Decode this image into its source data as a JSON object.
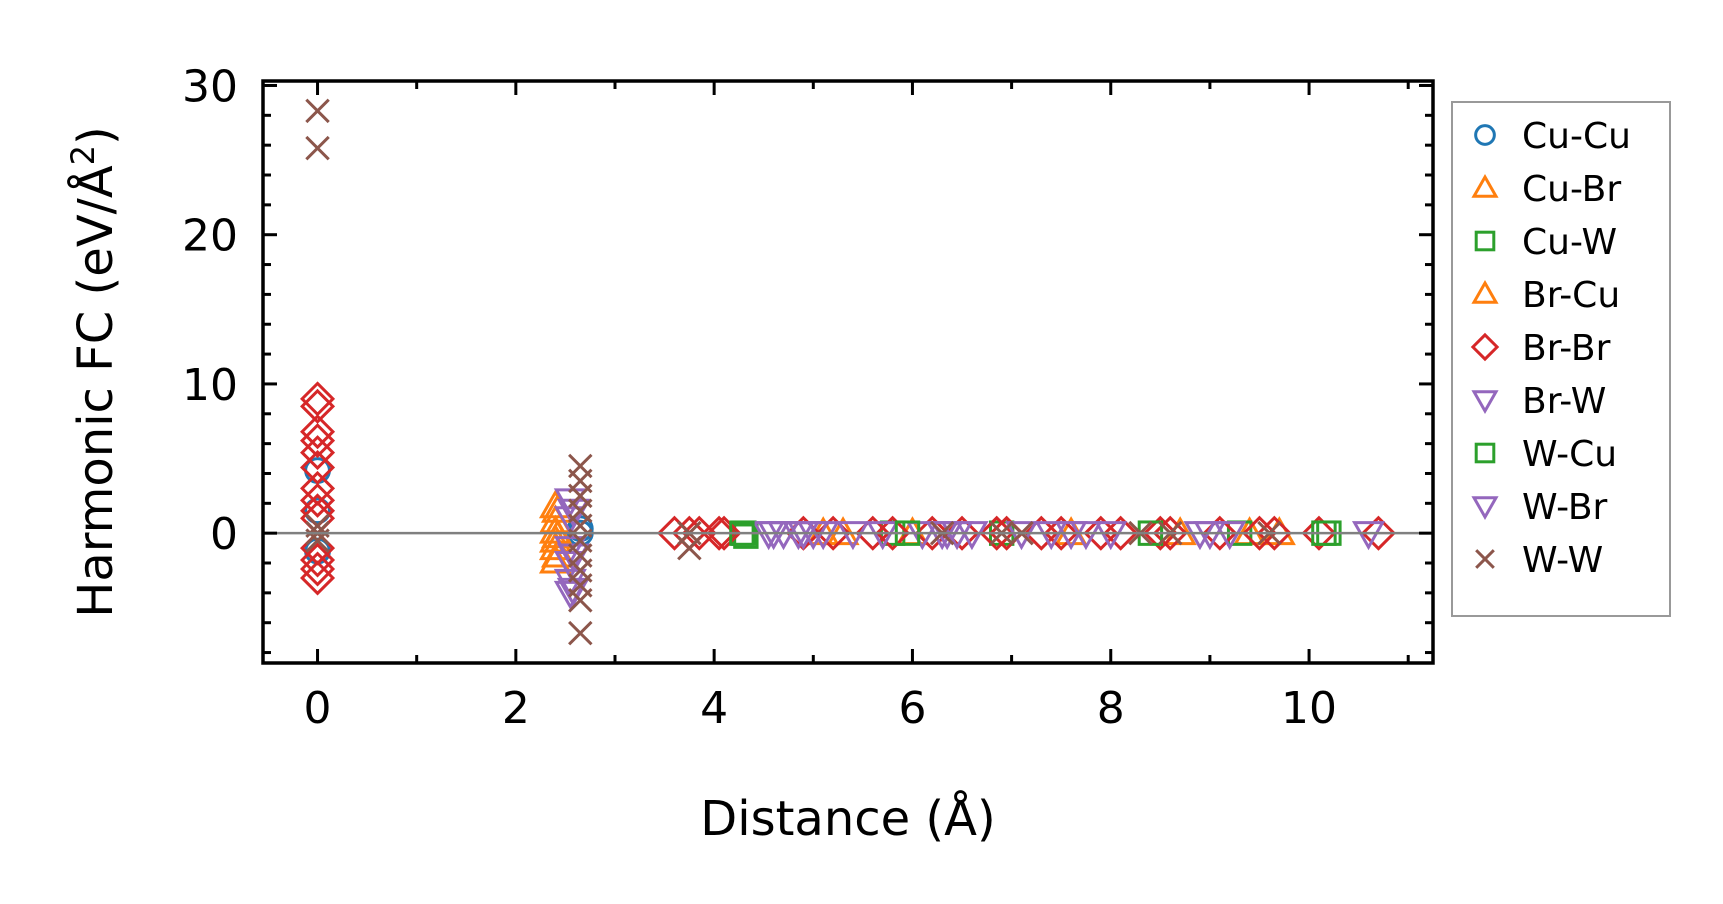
{
  "chart_data": {
    "type": "scatter",
    "title": "",
    "xlabel": "Distance (Å)",
    "ylabel_main": "Harmonic FC (eV/Å",
    "ylabel_sup": "2",
    "ylabel_end": ")",
    "xlim": [
      -0.55,
      11.25
    ],
    "ylim": [
      -8.7,
      30.3
    ],
    "xticks": [
      0,
      2,
      4,
      6,
      8,
      10
    ],
    "xtick_labels": [
      "0",
      "2",
      "4",
      "6",
      "8",
      "10"
    ],
    "yticks": [
      0,
      10,
      20,
      30
    ],
    "ytick_labels": [
      "0",
      "10",
      "20",
      "30"
    ],
    "grid": false,
    "zero_line": true,
    "legend_placement": "outside-right",
    "series": [
      {
        "name": "Cu-Cu",
        "marker": "circle",
        "color": "#1f77b4",
        "points": [
          [
            0,
            4.2
          ],
          [
            0,
            1.5
          ],
          [
            0,
            -1.2
          ],
          [
            2.65,
            0
          ],
          [
            2.65,
            0.3
          ]
        ]
      },
      {
        "name": "Cu-Br",
        "marker": "triangle-up",
        "color": "#ff7f0e",
        "points": [
          [
            2.4,
            1.8
          ],
          [
            2.4,
            0.8
          ],
          [
            2.4,
            0.1
          ],
          [
            2.4,
            -0.5
          ],
          [
            2.4,
            -1
          ],
          [
            2.4,
            -1.9
          ],
          [
            5.1,
            0
          ],
          [
            6.0,
            0
          ],
          [
            8.7,
            0
          ],
          [
            9.4,
            0
          ]
        ]
      },
      {
        "name": "Cu-W",
        "marker": "square",
        "color": "#2ca02c",
        "points": [
          [
            4.3,
            0
          ],
          [
            4.32,
            -0.2
          ],
          [
            5.8,
            0
          ],
          [
            6.9,
            0
          ],
          [
            9.3,
            0
          ],
          [
            10.2,
            0
          ]
        ]
      },
      {
        "name": "Br-Cu",
        "marker": "triangle-up",
        "color": "#ff7f0e",
        "points": [
          [
            2.42,
            1.5
          ],
          [
            2.42,
            -0.2
          ],
          [
            2.42,
            -1.5
          ],
          [
            5.3,
            0
          ],
          [
            7.6,
            0
          ],
          [
            9.7,
            0
          ]
        ]
      },
      {
        "name": "Br-Br",
        "marker": "diamond",
        "color": "#d62728",
        "points": [
          [
            0,
            9
          ],
          [
            0,
            8.5
          ],
          [
            0,
            6.8
          ],
          [
            0,
            6.2
          ],
          [
            0,
            5.4
          ],
          [
            0,
            4.4
          ],
          [
            0,
            3
          ],
          [
            0,
            2.2
          ],
          [
            0,
            1.5
          ],
          [
            0,
            1
          ],
          [
            0,
            -1
          ],
          [
            0,
            -1.8
          ],
          [
            0,
            -2.4
          ],
          [
            0,
            -3
          ],
          [
            3.6,
            0
          ],
          [
            3.75,
            0
          ],
          [
            3.85,
            0
          ],
          [
            4.05,
            0
          ],
          [
            4.1,
            0
          ],
          [
            4.9,
            0
          ],
          [
            5.2,
            0
          ],
          [
            5.6,
            0
          ],
          [
            5.8,
            0
          ],
          [
            6.2,
            0
          ],
          [
            6.5,
            0
          ],
          [
            6.85,
            0
          ],
          [
            6.95,
            0
          ],
          [
            7.3,
            0
          ],
          [
            7.5,
            0
          ],
          [
            7.9,
            0
          ],
          [
            8.1,
            0
          ],
          [
            8.5,
            0
          ],
          [
            8.6,
            0
          ],
          [
            9.1,
            0
          ],
          [
            9.5,
            0
          ],
          [
            9.65,
            0
          ],
          [
            10.1,
            0
          ],
          [
            10.7,
            0
          ]
        ]
      },
      {
        "name": "Br-W",
        "marker": "triangle-down",
        "color": "#9467bd",
        "points": [
          [
            2.55,
            2.2
          ],
          [
            2.55,
            1
          ],
          [
            2.55,
            -1
          ],
          [
            2.55,
            -2
          ],
          [
            2.55,
            -3.2
          ],
          [
            2.55,
            -4
          ],
          [
            4.55,
            0
          ],
          [
            4.7,
            0
          ],
          [
            4.85,
            0
          ],
          [
            5.0,
            0
          ],
          [
            5.4,
            0
          ],
          [
            5.7,
            0
          ],
          [
            6.1,
            0
          ],
          [
            6.35,
            0
          ],
          [
            6.45,
            0
          ],
          [
            7.1,
            0
          ],
          [
            7.6,
            0
          ],
          [
            8.0,
            0
          ],
          [
            8.9,
            0
          ],
          [
            9.2,
            0
          ],
          [
            10.6,
            0
          ]
        ]
      },
      {
        "name": "W-Cu",
        "marker": "square",
        "color": "#2ca02c",
        "points": [
          [
            4.28,
            0
          ],
          [
            5.95,
            0
          ],
          [
            8.4,
            0
          ],
          [
            10.15,
            0
          ]
        ]
      },
      {
        "name": "W-Br",
        "marker": "triangle-down",
        "color": "#9467bd",
        "points": [
          [
            2.58,
            1.5
          ],
          [
            2.58,
            -1.5
          ],
          [
            2.58,
            -3.8
          ],
          [
            4.6,
            0
          ],
          [
            4.9,
            0
          ],
          [
            5.1,
            0
          ],
          [
            6.3,
            0
          ],
          [
            6.6,
            0
          ],
          [
            7.4,
            0
          ],
          [
            7.75,
            0
          ],
          [
            9.0,
            0
          ]
        ]
      },
      {
        "name": "W-W",
        "marker": "x",
        "color": "#8c564b",
        "points": [
          [
            0,
            28.3
          ],
          [
            0,
            25.8
          ],
          [
            0,
            0.5
          ],
          [
            0,
            0
          ],
          [
            0,
            -0.5
          ],
          [
            2.65,
            4.5
          ],
          [
            2.65,
            3.5
          ],
          [
            2.65,
            2.5
          ],
          [
            2.65,
            1.5
          ],
          [
            2.65,
            0.5
          ],
          [
            2.65,
            -0.5
          ],
          [
            2.65,
            -1.5
          ],
          [
            2.65,
            -2.5
          ],
          [
            2.65,
            -3.5
          ],
          [
            2.65,
            -4.5
          ],
          [
            2.65,
            -6.7
          ],
          [
            3.75,
            0
          ],
          [
            3.75,
            -1
          ],
          [
            6.3,
            0
          ],
          [
            6.9,
            0
          ],
          [
            7.1,
            0
          ],
          [
            8.3,
            0
          ],
          [
            8.6,
            0
          ],
          [
            9.6,
            0
          ]
        ]
      }
    ]
  }
}
